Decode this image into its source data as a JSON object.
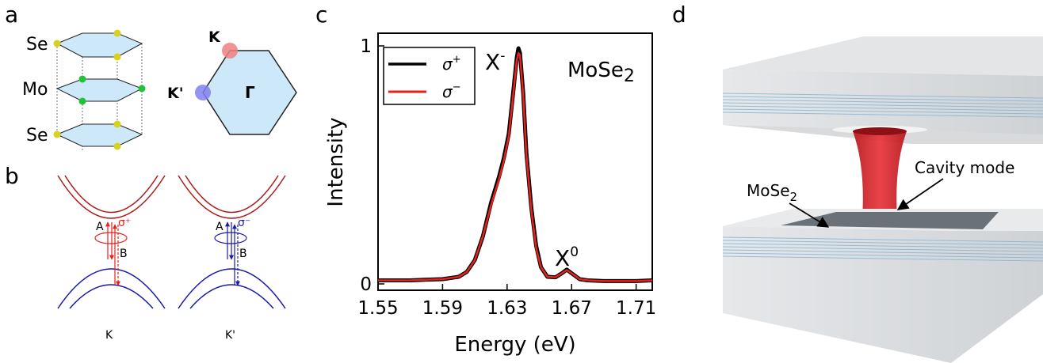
{
  "panels": {
    "a": {
      "letter": "a",
      "atoms": {
        "top": "Se",
        "middle": "Mo",
        "bottom": "Se"
      },
      "bz_labels": {
        "k": "K",
        "k_prime": "K'",
        "gamma": "Γ"
      }
    },
    "b": {
      "letter": "b",
      "transitions": {
        "a_left": "A",
        "b_left": "B",
        "sigma_plus": "σ⁺",
        "a_right": "A",
        "b_right": "B",
        "sigma_minus": "σ⁻"
      },
      "valleys": {
        "left": "K",
        "right": "K'"
      }
    },
    "c": {
      "letter": "c",
      "material": "MoSe",
      "material_sub": "2",
      "peak_labels": {
        "trion": "X",
        "trion_sup": "-",
        "exciton": "X",
        "exciton_sup": "0"
      },
      "legend": [
        {
          "label": "σ",
          "sup": "+",
          "color": "#000000"
        },
        {
          "label": "σ",
          "sup": "−",
          "color": "#e8211b"
        }
      ]
    },
    "d": {
      "letter": "d",
      "cavity_label": "Cavity mode",
      "material_label": "MoSe",
      "material_sub": "2"
    }
  },
  "chart_data": {
    "type": "line",
    "xlabel": "Energy (eV)",
    "ylabel": "Intensity",
    "xlim": [
      1.55,
      1.72
    ],
    "ylim": [
      0,
      1
    ],
    "x_ticks": [
      "1.55",
      "1.59",
      "1.63",
      "1.67",
      "1.71"
    ],
    "x_tick_values": [
      1.55,
      1.59,
      1.63,
      1.67,
      1.71
    ],
    "y_ticks": [
      "0",
      "1"
    ],
    "y_tick_values": [
      0,
      1
    ],
    "legend_position": "top-left",
    "x": [
      1.55,
      1.56,
      1.57,
      1.58,
      1.59,
      1.6,
      1.605,
      1.61,
      1.615,
      1.62,
      1.625,
      1.628,
      1.631,
      1.634,
      1.636,
      1.637,
      1.638,
      1.64,
      1.642,
      1.645,
      1.648,
      1.651,
      1.655,
      1.66,
      1.664,
      1.667,
      1.67,
      1.675,
      1.68,
      1.69,
      1.7,
      1.71,
      1.72
    ],
    "series": [
      {
        "name": "σ+",
        "color": "#000000",
        "values": [
          0.015,
          0.015,
          0.015,
          0.018,
          0.02,
          0.03,
          0.05,
          0.1,
          0.2,
          0.34,
          0.45,
          0.53,
          0.63,
          0.82,
          0.95,
          0.99,
          0.97,
          0.8,
          0.55,
          0.32,
          0.16,
          0.07,
          0.03,
          0.028,
          0.045,
          0.06,
          0.045,
          0.02,
          0.015,
          0.012,
          0.012,
          0.012,
          0.015
        ]
      },
      {
        "name": "σ−",
        "color": "#e8211b",
        "values": [
          0.015,
          0.015,
          0.015,
          0.018,
          0.02,
          0.03,
          0.05,
          0.1,
          0.2,
          0.33,
          0.44,
          0.52,
          0.62,
          0.81,
          0.94,
          0.97,
          0.96,
          0.79,
          0.54,
          0.31,
          0.15,
          0.07,
          0.03,
          0.028,
          0.045,
          0.058,
          0.045,
          0.02,
          0.015,
          0.012,
          0.012,
          0.012,
          0.015
        ]
      }
    ]
  }
}
